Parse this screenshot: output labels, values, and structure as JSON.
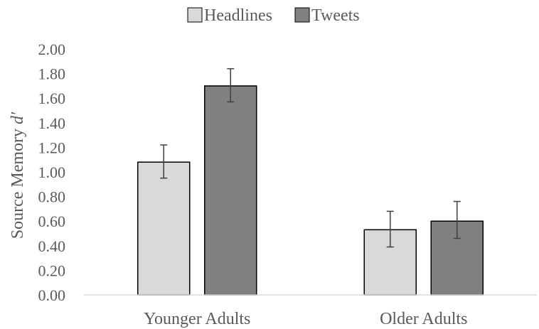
{
  "chart_data": {
    "type": "bar",
    "title": "",
    "xlabel": "",
    "ylabel": "Source Memory",
    "ylabel_italic_suffix": "d′",
    "categories": [
      "Younger Adults",
      "Older Adults"
    ],
    "ylim": [
      0,
      2
    ],
    "yticks": [
      "0.00",
      "0.20",
      "0.40",
      "0.60",
      "0.80",
      "1.00",
      "1.20",
      "1.40",
      "1.60",
      "1.80",
      "2.00"
    ],
    "grid": false,
    "legend_position": "top-center",
    "series": [
      {
        "name": "Headlines",
        "color": "#d9d9d9",
        "values": [
          1.08,
          0.53
        ],
        "error": [
          [
            0.13,
            0.14
          ],
          [
            0.14,
            0.15
          ]
        ]
      },
      {
        "name": "Tweets",
        "color": "#808080",
        "values": [
          1.7,
          0.6
        ],
        "error": [
          [
            0.13,
            0.14
          ],
          [
            0.14,
            0.16
          ]
        ]
      }
    ]
  }
}
